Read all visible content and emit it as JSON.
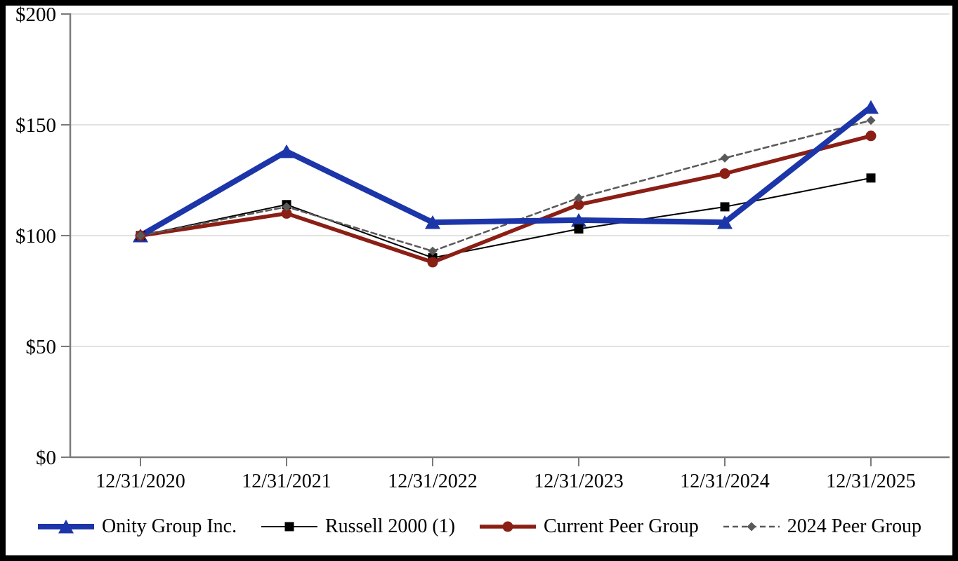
{
  "chart_data": {
    "type": "line",
    "title": "",
    "xlabel": "",
    "ylabel": "",
    "categories": [
      "12/31/2020",
      "12/31/2021",
      "12/31/2022",
      "12/31/2023",
      "12/31/2024",
      "12/31/2025"
    ],
    "series": [
      {
        "name": "Onity Group Inc.",
        "values": [
          100,
          138,
          106,
          107,
          106,
          158
        ],
        "color": "#1C35A8",
        "marker": "triangle",
        "line_width": 8,
        "dash": ""
      },
      {
        "name": "Russell 2000 (1)",
        "values": [
          100,
          114,
          90,
          103,
          113,
          126
        ],
        "color": "#000000",
        "marker": "square",
        "line_width": 2,
        "dash": ""
      },
      {
        "name": "Current Peer Group",
        "values": [
          100,
          110,
          88,
          114,
          128,
          145
        ],
        "color": "#8B1E15",
        "marker": "circle",
        "line_width": 5.5,
        "dash": ""
      },
      {
        "name": "2024 Peer Group",
        "values": [
          100,
          113,
          93,
          117,
          135,
          152
        ],
        "color": "#595959",
        "marker": "diamond",
        "line_width": 2.5,
        "dash": "8,5"
      }
    ],
    "y_ticks": [
      {
        "label": "$0",
        "value": 0
      },
      {
        "label": "$50",
        "value": 50
      },
      {
        "label": "$100",
        "value": 100
      },
      {
        "label": "$150",
        "value": 150
      },
      {
        "label": "$200",
        "value": 200
      }
    ],
    "ylim": [
      0,
      200
    ],
    "grid": true,
    "legend_position": "bottom",
    "colors": {
      "grid": "#D9D9D9",
      "axis": "#7A7A7A",
      "frame_border": "#000000",
      "background": "#FFFFFF"
    }
  }
}
